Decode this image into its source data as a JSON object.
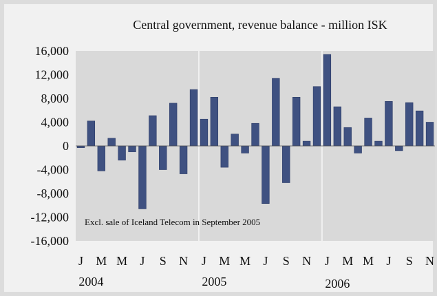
{
  "chart_data": {
    "type": "bar",
    "title": "Central government, revenue balance - million ISK",
    "annotation": "Excl. sale of Iceland Telecom in September 2005",
    "ylim": [
      -16000,
      16000
    ],
    "y_ticks": [
      16000,
      12000,
      8000,
      4000,
      0,
      -4000,
      -8000,
      -12000,
      -16000
    ],
    "y_tick_labels": [
      "16,000",
      "12,000",
      "8,000",
      "4,000",
      "0",
      "-4,000",
      "-8,000",
      "-12,000",
      "-16,000"
    ],
    "x_tick_labels": [
      "J",
      "M",
      "M",
      "J",
      "S",
      "N",
      "J",
      "M",
      "M",
      "J",
      "S",
      "N",
      "J",
      "M",
      "M",
      "J",
      "S",
      "N"
    ],
    "year_labels": [
      {
        "label": "2004",
        "start_index": 0
      },
      {
        "label": "2005",
        "start_index": 12
      },
      {
        "label": "2006",
        "start_index": 24
      }
    ],
    "categories": [
      "2004-01",
      "2004-02",
      "2004-03",
      "2004-04",
      "2004-05",
      "2004-06",
      "2004-07",
      "2004-08",
      "2004-09",
      "2004-10",
      "2004-11",
      "2004-12",
      "2005-01",
      "2005-02",
      "2005-03",
      "2005-04",
      "2005-05",
      "2005-06",
      "2005-07",
      "2005-08",
      "2005-09",
      "2005-10",
      "2005-11",
      "2005-12",
      "2006-01",
      "2006-02",
      "2006-03",
      "2006-04",
      "2006-05",
      "2006-06",
      "2006-07",
      "2006-08",
      "2006-09",
      "2006-10",
      "2006-11"
    ],
    "values": [
      -300,
      4200,
      -4200,
      1300,
      -2400,
      -1000,
      -10600,
      5100,
      -4000,
      7200,
      -4700,
      9500,
      4500,
      8200,
      -3600,
      2000,
      -1200,
      3800,
      -9700,
      11400,
      -6200,
      8200,
      800,
      10000,
      15400,
      6600,
      3100,
      -1200,
      4700,
      800,
      7500,
      -800,
      7300,
      5900,
      4000
    ],
    "grid": true,
    "colors": {
      "bar": "#3f5181",
      "bar_stroke": "#2a3a66",
      "plot_bg": "#d9d9d9",
      "grid": "#ffffff"
    }
  }
}
